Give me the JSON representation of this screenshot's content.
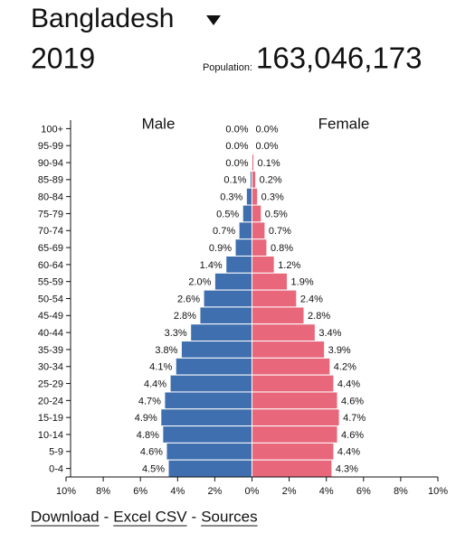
{
  "chart_data": {
    "type": "pyramid",
    "title": "Bangladesh",
    "year": "2019",
    "population_label": "Population:",
    "population": "163,046,173",
    "left_label": "Male",
    "right_label": "Female",
    "categories": [
      "100+",
      "95-99",
      "90-94",
      "85-89",
      "80-84",
      "75-79",
      "70-74",
      "65-69",
      "60-64",
      "55-59",
      "50-54",
      "45-49",
      "40-44",
      "35-39",
      "30-34",
      "25-29",
      "20-24",
      "15-19",
      "10-14",
      "5-9",
      "0-4"
    ],
    "series": [
      {
        "name": "Male",
        "color": "#3f6fae",
        "side": "left",
        "values": [
          0.0,
          0.0,
          0.0,
          0.1,
          0.3,
          0.5,
          0.7,
          0.9,
          1.4,
          2.0,
          2.6,
          2.8,
          3.3,
          3.8,
          4.1,
          4.4,
          4.7,
          4.9,
          4.8,
          4.6,
          4.5
        ],
        "value_labels": [
          "0.0%",
          "0.0%",
          "0.0%",
          "0.1%",
          "0.3%",
          "0.5%",
          "0.7%",
          "0.9%",
          "1.4%",
          "2.0%",
          "2.6%",
          "2.8%",
          "3.3%",
          "3.8%",
          "4.1%",
          "4.4%",
          "4.7%",
          "4.9%",
          "4.8%",
          "4.6%",
          "4.5%"
        ]
      },
      {
        "name": "Female",
        "color": "#e8677b",
        "side": "right",
        "values": [
          0.0,
          0.0,
          0.1,
          0.2,
          0.3,
          0.5,
          0.7,
          0.8,
          1.2,
          1.9,
          2.4,
          2.8,
          3.4,
          3.9,
          4.2,
          4.4,
          4.6,
          4.7,
          4.6,
          4.4,
          4.3
        ],
        "value_labels": [
          "0.0%",
          "0.0%",
          "0.1%",
          "0.2%",
          "0.3%",
          "0.5%",
          "0.7%",
          "0.8%",
          "1.2%",
          "1.9%",
          "2.4%",
          "2.8%",
          "3.4%",
          "3.9%",
          "4.2%",
          "4.4%",
          "4.6%",
          "4.7%",
          "4.6%",
          "4.4%",
          "4.3%"
        ]
      }
    ],
    "xlim": [
      -10,
      10
    ],
    "xticks": [
      {
        "value": -10,
        "label": "10%"
      },
      {
        "value": -8,
        "label": "8%"
      },
      {
        "value": -6,
        "label": "6%"
      },
      {
        "value": -4,
        "label": "4%"
      },
      {
        "value": -2,
        "label": "2%"
      },
      {
        "value": 0,
        "label": "0%"
      },
      {
        "value": 2,
        "label": "2%"
      },
      {
        "value": 4,
        "label": "4%"
      },
      {
        "value": 6,
        "label": "6%"
      },
      {
        "value": 8,
        "label": "8%"
      },
      {
        "value": 10,
        "label": "10%"
      }
    ],
    "links": [
      "Download",
      "Excel CSV",
      "Sources"
    ],
    "separator": "-"
  }
}
